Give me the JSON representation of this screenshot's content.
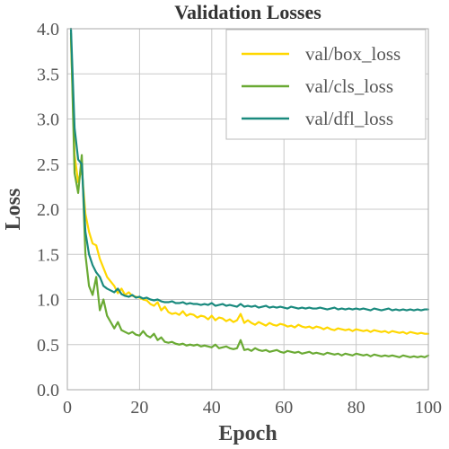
{
  "chart_data": {
    "type": "line",
    "title": "Validation Losses",
    "xlabel": "Epoch",
    "ylabel": "Loss",
    "xlim": [
      0,
      100
    ],
    "ylim": [
      0,
      4.0
    ],
    "xticks": [
      "0",
      "20",
      "40",
      "60",
      "80",
      "100"
    ],
    "yticks": [
      "0.0",
      "0.5",
      "1.0",
      "1.5",
      "2.0",
      "2.5",
      "3.0",
      "3.5",
      "4.0"
    ],
    "grid": true,
    "legend_position": "top-right",
    "x": [
      1,
      2,
      3,
      4,
      5,
      6,
      7,
      8,
      9,
      10,
      11,
      12,
      13,
      14,
      15,
      16,
      17,
      18,
      19,
      20,
      21,
      22,
      23,
      24,
      25,
      26,
      27,
      28,
      29,
      30,
      31,
      32,
      33,
      34,
      35,
      36,
      37,
      38,
      39,
      40,
      41,
      42,
      43,
      44,
      45,
      46,
      47,
      48,
      49,
      50,
      51,
      52,
      53,
      54,
      55,
      56,
      57,
      58,
      59,
      60,
      61,
      62,
      63,
      64,
      65,
      66,
      67,
      68,
      69,
      70,
      71,
      72,
      73,
      74,
      75,
      76,
      77,
      78,
      79,
      80,
      81,
      82,
      83,
      84,
      85,
      86,
      87,
      88,
      89,
      90,
      91,
      92,
      93,
      94,
      95,
      96,
      97,
      98,
      99,
      100
    ],
    "series": [
      {
        "name": "val/box_loss",
        "color": "#ffd700",
        "values": [
          3.9,
          2.6,
          2.3,
          2.45,
          1.95,
          1.75,
          1.62,
          1.6,
          1.45,
          1.35,
          1.25,
          1.2,
          1.15,
          1.07,
          1.12,
          1.05,
          1.08,
          1.04,
          1.03,
          1.02,
          1.0,
          0.99,
          0.95,
          0.93,
          0.97,
          0.88,
          0.92,
          0.86,
          0.84,
          0.85,
          0.83,
          0.87,
          0.82,
          0.84,
          0.83,
          0.8,
          0.82,
          0.81,
          0.78,
          0.82,
          0.77,
          0.8,
          0.79,
          0.76,
          0.78,
          0.75,
          0.77,
          0.84,
          0.74,
          0.77,
          0.74,
          0.72,
          0.75,
          0.73,
          0.71,
          0.74,
          0.72,
          0.71,
          0.73,
          0.72,
          0.7,
          0.71,
          0.69,
          0.72,
          0.7,
          0.69,
          0.7,
          0.68,
          0.7,
          0.69,
          0.67,
          0.69,
          0.67,
          0.66,
          0.68,
          0.67,
          0.66,
          0.67,
          0.65,
          0.67,
          0.66,
          0.65,
          0.66,
          0.64,
          0.66,
          0.65,
          0.64,
          0.65,
          0.63,
          0.65,
          0.64,
          0.63,
          0.64,
          0.62,
          0.64,
          0.63,
          0.62,
          0.63,
          0.62,
          0.62
        ]
      },
      {
        "name": "val/cls_loss",
        "color": "#6aaa34",
        "values": [
          3.95,
          2.4,
          2.18,
          2.6,
          1.5,
          1.15,
          1.05,
          1.25,
          0.88,
          1.0,
          0.82,
          0.75,
          0.68,
          0.75,
          0.66,
          0.64,
          0.62,
          0.64,
          0.61,
          0.6,
          0.65,
          0.6,
          0.58,
          0.62,
          0.55,
          0.58,
          0.53,
          0.52,
          0.53,
          0.51,
          0.5,
          0.51,
          0.49,
          0.5,
          0.49,
          0.5,
          0.48,
          0.49,
          0.48,
          0.47,
          0.5,
          0.46,
          0.47,
          0.48,
          0.46,
          0.45,
          0.46,
          0.55,
          0.44,
          0.45,
          0.43,
          0.46,
          0.44,
          0.43,
          0.44,
          0.42,
          0.43,
          0.44,
          0.42,
          0.41,
          0.43,
          0.42,
          0.41,
          0.42,
          0.4,
          0.41,
          0.42,
          0.4,
          0.41,
          0.4,
          0.39,
          0.41,
          0.4,
          0.39,
          0.4,
          0.38,
          0.4,
          0.39,
          0.38,
          0.4,
          0.39,
          0.38,
          0.39,
          0.37,
          0.39,
          0.38,
          0.37,
          0.38,
          0.37,
          0.38,
          0.37,
          0.36,
          0.38,
          0.37,
          0.36,
          0.37,
          0.36,
          0.37,
          0.36,
          0.38
        ]
      },
      {
        "name": "val/dfl_loss",
        "color": "#1a8a7e",
        "values": [
          4.0,
          2.9,
          2.55,
          2.5,
          1.75,
          1.5,
          1.38,
          1.3,
          1.25,
          1.15,
          1.12,
          1.1,
          1.08,
          1.12,
          1.06,
          1.04,
          1.03,
          1.05,
          1.02,
          1.03,
          1.01,
          1.02,
          1.0,
          0.99,
          1.0,
          0.98,
          0.97,
          0.97,
          0.98,
          0.96,
          0.96,
          0.97,
          0.95,
          0.96,
          0.95,
          0.95,
          0.94,
          0.95,
          0.94,
          0.96,
          0.93,
          0.94,
          0.95,
          0.93,
          0.94,
          0.93,
          0.92,
          0.95,
          0.92,
          0.93,
          0.92,
          0.93,
          0.91,
          0.92,
          0.93,
          0.91,
          0.92,
          0.91,
          0.92,
          0.91,
          0.9,
          0.92,
          0.91,
          0.9,
          0.91,
          0.9,
          0.91,
          0.9,
          0.9,
          0.91,
          0.9,
          0.89,
          0.9,
          0.91,
          0.89,
          0.9,
          0.89,
          0.9,
          0.89,
          0.9,
          0.89,
          0.9,
          0.89,
          0.88,
          0.9,
          0.89,
          0.88,
          0.89,
          0.9,
          0.88,
          0.89,
          0.88,
          0.89,
          0.88,
          0.89,
          0.88,
          0.89,
          0.88,
          0.89,
          0.89
        ]
      }
    ]
  }
}
